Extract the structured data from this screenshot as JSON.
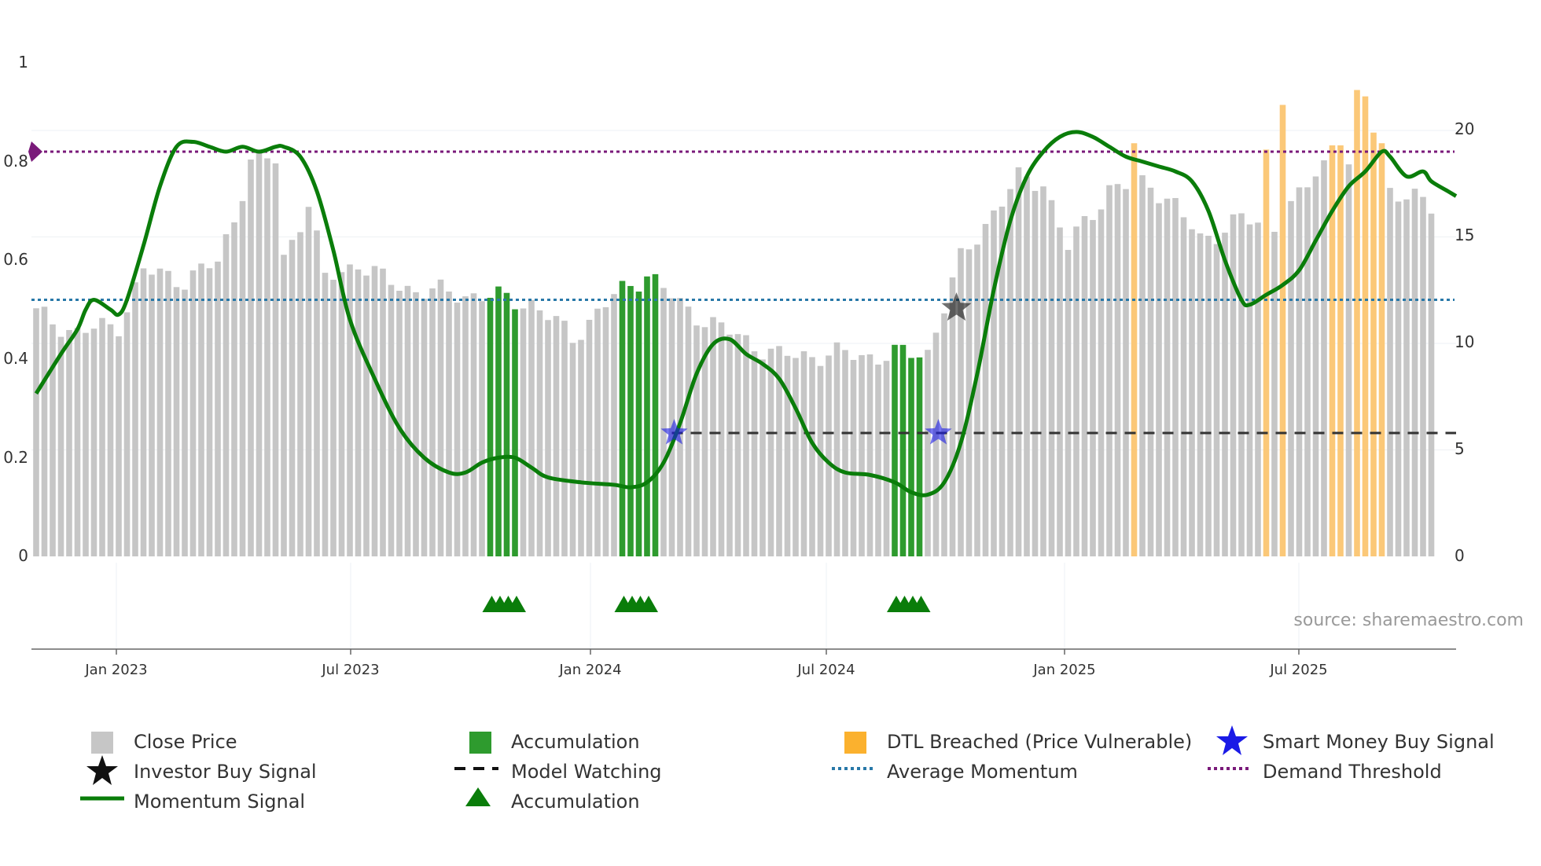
{
  "chart_data": {
    "type": "bar",
    "title": "",
    "source_label": "source: sharemaestro.com",
    "x_tick_labels": [
      "Jan 2023",
      "Jul 2023",
      "Jan 2024",
      "Jul 2024",
      "Jan 2025",
      "Jul 2025"
    ],
    "left_axis": {
      "ylim": [
        0,
        1
      ],
      "ticks": [
        "0",
        "0.2",
        "0.4",
        "0.6",
        "0.8",
        "1"
      ],
      "tick_values": [
        0,
        0.2,
        0.4,
        0.6,
        0.8,
        1.0
      ]
    },
    "right_axis": {
      "ylim": [
        0,
        23
      ],
      "ticks": [
        "0",
        "5",
        "10",
        "15",
        "20"
      ],
      "tick_values": [
        0,
        5,
        10,
        15,
        20
      ]
    },
    "week_count": 170,
    "close_price_note": "weekly bars, right axis (price)",
    "close_price_anchors": [
      [
        0,
        11.4
      ],
      [
        5,
        10.5
      ],
      [
        10,
        10.9
      ],
      [
        13,
        13.4
      ],
      [
        18,
        13.0
      ],
      [
        22,
        13.8
      ],
      [
        24,
        15.9
      ],
      [
        26,
        18.6
      ],
      [
        29,
        18.6
      ],
      [
        30,
        14.0
      ],
      [
        33,
        16.6
      ],
      [
        35,
        13.0
      ],
      [
        39,
        13.8
      ],
      [
        42,
        13.0
      ],
      [
        46,
        12.5
      ],
      [
        55,
        12.2
      ],
      [
        60,
        11.9
      ],
      [
        65,
        10.3
      ],
      [
        70,
        12.2
      ],
      [
        74,
        13.3
      ],
      [
        78,
        11.8
      ],
      [
        83,
        10.7
      ],
      [
        90,
        9.4
      ],
      [
        97,
        9.5
      ],
      [
        102,
        9.4
      ],
      [
        108,
        9.6
      ],
      [
        112,
        13.9
      ],
      [
        116,
        16.2
      ],
      [
        119,
        17.7
      ],
      [
        122,
        17.6
      ],
      [
        125,
        14.5
      ],
      [
        130,
        17.3
      ],
      [
        135,
        17.5
      ],
      [
        138,
        16.5
      ],
      [
        141,
        14.8
      ],
      [
        146,
        15.9
      ],
      [
        149,
        15.3
      ],
      [
        152,
        16.4
      ],
      [
        156,
        18.4
      ],
      [
        160,
        18.3
      ],
      [
        164,
        17.3
      ],
      [
        166,
        16.9
      ],
      [
        170,
        16.2
      ]
    ],
    "accumulation_weeks": [
      55,
      56,
      57,
      58,
      71,
      72,
      73,
      74,
      75,
      104,
      105,
      106,
      107
    ],
    "dtl_breached_weeks": [
      133,
      149,
      151,
      157,
      158,
      160,
      161,
      162,
      163
    ],
    "dtl_breached_prices": [
      19.4,
      19.1,
      21.2,
      19.3,
      19.3,
      21.9,
      21.6,
      19.9,
      19.4
    ],
    "momentum_note": "left axis (0-1)",
    "momentum_anchors": [
      [
        0,
        0.33
      ],
      [
        3,
        0.41
      ],
      [
        5,
        0.46
      ],
      [
        6,
        0.5
      ],
      [
        7,
        0.52
      ],
      [
        9,
        0.5
      ],
      [
        10,
        0.49
      ],
      [
        11,
        0.52
      ],
      [
        13,
        0.63
      ],
      [
        15,
        0.75
      ],
      [
        17,
        0.83
      ],
      [
        19,
        0.84
      ],
      [
        21,
        0.83
      ],
      [
        23,
        0.82
      ],
      [
        25,
        0.83
      ],
      [
        27,
        0.82
      ],
      [
        29,
        0.83
      ],
      [
        30,
        0.83
      ],
      [
        32,
        0.81
      ],
      [
        34,
        0.74
      ],
      [
        36,
        0.62
      ],
      [
        38,
        0.48
      ],
      [
        41,
        0.36
      ],
      [
        44,
        0.26
      ],
      [
        47,
        0.2
      ],
      [
        50,
        0.17
      ],
      [
        52,
        0.17
      ],
      [
        54,
        0.19
      ],
      [
        56,
        0.2
      ],
      [
        58,
        0.2
      ],
      [
        60,
        0.18
      ],
      [
        62,
        0.16
      ],
      [
        66,
        0.15
      ],
      [
        70,
        0.145
      ],
      [
        72,
        0.14
      ],
      [
        74,
        0.15
      ],
      [
        76,
        0.19
      ],
      [
        78,
        0.27
      ],
      [
        80,
        0.37
      ],
      [
        82,
        0.43
      ],
      [
        84,
        0.44
      ],
      [
        86,
        0.41
      ],
      [
        88,
        0.39
      ],
      [
        90,
        0.36
      ],
      [
        92,
        0.3
      ],
      [
        94,
        0.23
      ],
      [
        96,
        0.19
      ],
      [
        98,
        0.17
      ],
      [
        101,
        0.165
      ],
      [
        104,
        0.15
      ],
      [
        106,
        0.13
      ],
      [
        108,
        0.125
      ],
      [
        110,
        0.15
      ],
      [
        112,
        0.23
      ],
      [
        114,
        0.37
      ],
      [
        116,
        0.54
      ],
      [
        118,
        0.68
      ],
      [
        120,
        0.77
      ],
      [
        122,
        0.82
      ],
      [
        124,
        0.85
      ],
      [
        126,
        0.86
      ],
      [
        128,
        0.85
      ],
      [
        130,
        0.83
      ],
      [
        132,
        0.81
      ],
      [
        134,
        0.8
      ],
      [
        136,
        0.79
      ],
      [
        138,
        0.78
      ],
      [
        140,
        0.76
      ],
      [
        142,
        0.7
      ],
      [
        144,
        0.6
      ],
      [
        146,
        0.52
      ],
      [
        147,
        0.51
      ],
      [
        149,
        0.53
      ],
      [
        151,
        0.55
      ],
      [
        153,
        0.58
      ],
      [
        155,
        0.64
      ],
      [
        157,
        0.7
      ],
      [
        159,
        0.75
      ],
      [
        161,
        0.78
      ],
      [
        163,
        0.82
      ],
      [
        164,
        0.81
      ],
      [
        166,
        0.77
      ],
      [
        168,
        0.78
      ],
      [
        169,
        0.76
      ],
      [
        171,
        0.74
      ],
      [
        172,
        0.73
      ]
    ],
    "average_momentum": 0.52,
    "demand_threshold": 0.82,
    "model_watching_level": 0.25,
    "model_watching_range": [
      77,
      172
    ],
    "smart_money_buy_signals": [
      {
        "week": 77,
        "value": 0.25
      },
      {
        "week": 109,
        "value": 0.25
      }
    ],
    "investor_buy_signals": [
      {
        "week": 111,
        "value": 0.5
      }
    ],
    "accumulation_markers_groups": [
      [
        55,
        56,
        57,
        58
      ],
      [
        71,
        72,
        73,
        74
      ],
      [
        104,
        105,
        106,
        107
      ]
    ],
    "demand_threshold_marker_value": 0.82
  },
  "colors": {
    "close_price": "#c6c6c6",
    "accumulation": "#2e9b2e",
    "dtl_breached": "#fbc878",
    "momentum": "#0a7d0a",
    "average_momentum": "#2878a8",
    "demand_threshold": "#7a1a7a",
    "model_watching": "#333333",
    "smart_money": "#1a1ae6",
    "investor": "#111111"
  },
  "legend": {
    "close_price": "Close Price",
    "accumulation_bar": "Accumulation",
    "dtl_breached": "DTL Breached (Price Vulnerable)",
    "smart_money": "Smart Money Buy Signal",
    "investor_buy": "Investor Buy Signal",
    "model_watching": "Model Watching",
    "average_momentum": "Average Momentum",
    "demand_threshold": "Demand Threshold",
    "momentum_signal": "Momentum Signal",
    "accumulation_marker": "Accumulation"
  }
}
